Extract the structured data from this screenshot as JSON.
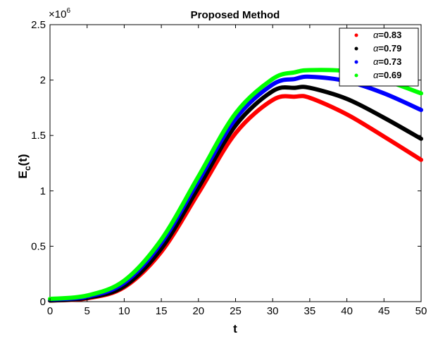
{
  "chart_data": {
    "type": "line",
    "title": "Proposed Method",
    "xlabel": "t",
    "ylabel_main": "E",
    "ylabel_sub": "c",
    "ylabel_tail": "(t)",
    "xlim": [
      0,
      50
    ],
    "ylim": [
      0,
      2.5
    ],
    "y_exponent_label": "×10",
    "y_exponent_power": "6",
    "x_ticks": [
      0,
      5,
      10,
      15,
      20,
      25,
      30,
      35,
      40,
      45,
      50
    ],
    "x_tick_labels": [
      "0",
      "5",
      "10",
      "15",
      "20",
      "25",
      "30",
      "35",
      "40",
      "45",
      "50"
    ],
    "y_ticks": [
      0,
      0.5,
      1,
      1.5,
      2,
      2.5
    ],
    "y_tick_labels": [
      "0",
      "0.5",
      "1",
      "1.5",
      "2",
      "2.5"
    ],
    "legend_position": "top-right",
    "x": [
      0,
      5,
      10,
      15,
      20,
      25,
      30,
      33,
      35,
      40,
      45,
      50
    ],
    "series": [
      {
        "name": "α=0.83",
        "greek": "α",
        "value_label": "=0.83",
        "color": "#ff0000",
        "values": [
          0.01,
          0.03,
          0.13,
          0.45,
          0.98,
          1.52,
          1.82,
          1.85,
          1.84,
          1.69,
          1.49,
          1.28
        ]
      },
      {
        "name": "α=0.79",
        "greek": "α",
        "value_label": "=0.79",
        "color": "#000000",
        "values": [
          0.01,
          0.035,
          0.14,
          0.48,
          1.03,
          1.59,
          1.9,
          1.93,
          1.93,
          1.83,
          1.66,
          1.47
        ]
      },
      {
        "name": "α=0.73",
        "greek": "α",
        "value_label": "=0.73",
        "color": "#0000ff",
        "values": [
          0.02,
          0.045,
          0.17,
          0.53,
          1.09,
          1.65,
          1.96,
          2.01,
          2.03,
          1.99,
          1.88,
          1.73
        ]
      },
      {
        "name": "α=0.69",
        "greek": "α",
        "value_label": "=0.69",
        "color": "#00ff00",
        "values": [
          0.025,
          0.055,
          0.19,
          0.56,
          1.13,
          1.7,
          2.01,
          2.07,
          2.09,
          2.08,
          2.0,
          1.88
        ]
      }
    ]
  }
}
